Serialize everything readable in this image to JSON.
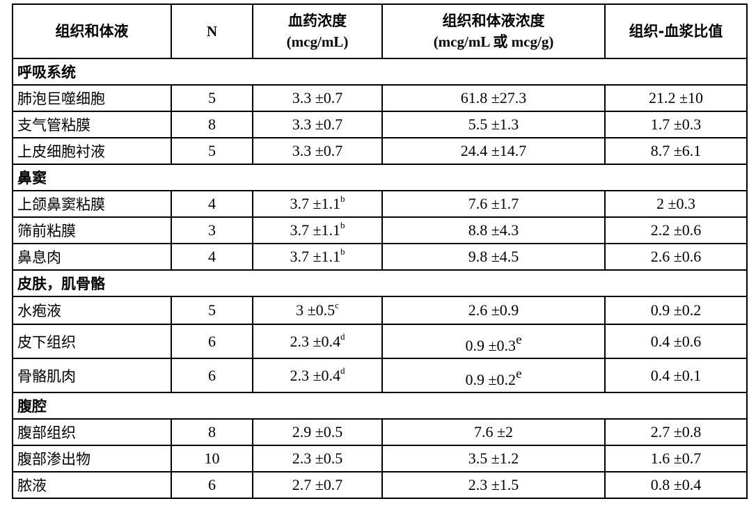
{
  "headers": {
    "tissue": "组织和体液",
    "n": "N",
    "plasma_line1": "血药浓度",
    "plasma_line2": "(mcg/mL)",
    "tissue_conc_line1": "组织和体液浓度",
    "tissue_conc_line2": "(mcg/mL 或 mcg/g)",
    "ratio": "组织-血浆比值"
  },
  "sections": [
    {
      "title": "呼吸系统",
      "rows": [
        {
          "name": "肺泡巨噬细胞",
          "n": "5",
          "plasma": "3.3 ±0.7",
          "plasma_sup": "",
          "tissue": "61.8 ±27.3",
          "tissue_sup": "",
          "ratio": "21.2 ±10"
        },
        {
          "name": "支气管粘膜",
          "n": "8",
          "plasma": "3.3 ±0.7",
          "plasma_sup": "",
          "tissue": "5.5 ±1.3",
          "tissue_sup": "",
          "ratio": "1.7 ±0.3"
        },
        {
          "name": "上皮细胞衬液",
          "n": "5",
          "plasma": "3.3 ±0.7",
          "plasma_sup": "",
          "tissue": "24.4 ±14.7",
          "tissue_sup": "",
          "ratio": "8.7 ±6.1"
        }
      ]
    },
    {
      "title": "鼻窦",
      "rows": [
        {
          "name": "上颌鼻窦粘膜",
          "n": "4",
          "plasma": "3.7 ±1.1",
          "plasma_sup": "b",
          "tissue": "7.6 ±1.7",
          "tissue_sup": "",
          "ratio": "2 ±0.3"
        },
        {
          "name": "筛前粘膜",
          "n": "3",
          "plasma": "3.7 ±1.1",
          "plasma_sup": "b",
          "tissue": "8.8 ±4.3",
          "tissue_sup": "",
          "ratio": "2.2 ±0.6"
        },
        {
          "name": "鼻息肉",
          "n": "4",
          "plasma": "3.7 ±1.1",
          "plasma_sup": "b",
          "tissue": "9.8 ±4.5",
          "tissue_sup": "",
          "ratio": "2.6 ±0.6"
        }
      ]
    },
    {
      "title": "皮肤，肌骨骼",
      "rows": [
        {
          "name": "水疱液",
          "n": "5",
          "plasma": "3 ±0.5",
          "plasma_sup": "c",
          "tissue": "2.6 ±0.9",
          "tissue_sup": "",
          "ratio": "0.9 ±0.2"
        },
        {
          "name": "皮下组织",
          "n": "6",
          "plasma": "2.3 ±0.4",
          "plasma_sup": "d",
          "tissue": "0.9 ±0.3",
          "tissue_sup": "e",
          "ratio": "0.4 ±0.6"
        },
        {
          "name": "骨骼肌肉",
          "n": "6",
          "plasma": "2.3 ±0.4",
          "plasma_sup": "d",
          "tissue": "0.9 ±0.2",
          "tissue_sup": "e",
          "ratio": "0.4 ±0.1"
        }
      ]
    },
    {
      "title": "腹腔",
      "rows": [
        {
          "name": "腹部组织",
          "n": "8",
          "plasma": "2.9 ±0.5",
          "plasma_sup": "",
          "tissue": "7.6 ±2",
          "tissue_sup": "",
          "ratio": "2.7 ±0.8"
        },
        {
          "name": "腹部渗出物",
          "n": "10",
          "plasma": "2.3 ±0.5",
          "plasma_sup": "",
          "tissue": "3.5 ±1.2",
          "tissue_sup": "",
          "ratio": "1.6 ±0.7"
        },
        {
          "name": "脓液",
          "n": "6",
          "plasma": "2.7 ±0.7",
          "plasma_sup": "",
          "tissue": "2.3 ±1.5",
          "tissue_sup": "",
          "ratio": "0.8 ±0.4"
        }
      ]
    }
  ]
}
